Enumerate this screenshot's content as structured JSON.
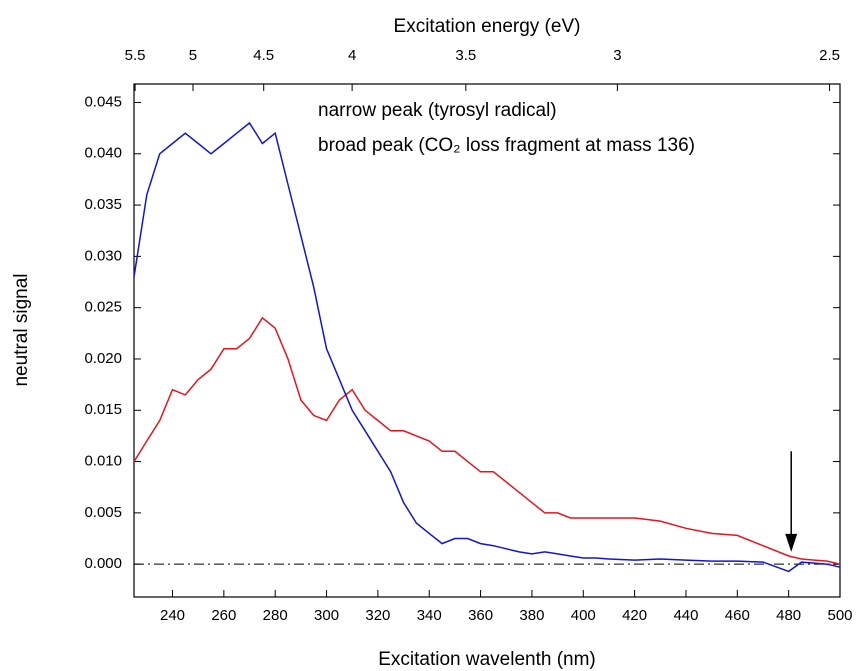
{
  "chart_data": {
    "type": "line",
    "title": "Excitation energy (eV)",
    "xlabel": "Excitation wavelenth (nm)",
    "ylabel": "neutral signal",
    "x": [
      225,
      230,
      235,
      240,
      245,
      250,
      255,
      260,
      265,
      270,
      275,
      280,
      285,
      290,
      295,
      300,
      305,
      310,
      315,
      320,
      325,
      330,
      335,
      340,
      345,
      350,
      355,
      360,
      365,
      370,
      375,
      380,
      385,
      390,
      395,
      400,
      405,
      410,
      420,
      430,
      440,
      450,
      460,
      470,
      480,
      485,
      490,
      495,
      500
    ],
    "series": [
      {
        "name": "narrow peak (tyrosyl radical)",
        "color": "#e8141c",
        "values": [
          0.01,
          0.012,
          0.014,
          0.017,
          0.0165,
          0.018,
          0.019,
          0.021,
          0.021,
          0.022,
          0.024,
          0.023,
          0.02,
          0.016,
          0.0145,
          0.014,
          0.016,
          0.017,
          0.015,
          0.014,
          0.013,
          0.013,
          0.0125,
          0.012,
          0.011,
          0.011,
          0.01,
          0.009,
          0.009,
          0.008,
          0.007,
          0.006,
          0.005,
          0.005,
          0.0045,
          0.0045,
          0.0045,
          0.0045,
          0.0045,
          0.0042,
          0.0035,
          0.003,
          0.0028,
          0.0018,
          0.0008,
          0.0005,
          0.0004,
          0.0003,
          0.0
        ]
      },
      {
        "name": "broad peak (CO₂ loss fragment at mass 136)",
        "color": "#1414d2",
        "values": [
          0.028,
          0.036,
          0.04,
          0.041,
          0.042,
          0.041,
          0.04,
          0.041,
          0.042,
          0.043,
          0.041,
          0.042,
          0.037,
          0.032,
          0.027,
          0.021,
          0.018,
          0.015,
          0.013,
          0.011,
          0.009,
          0.006,
          0.004,
          0.003,
          0.002,
          0.0025,
          0.0025,
          0.002,
          0.0018,
          0.0015,
          0.0012,
          0.001,
          0.0012,
          0.001,
          0.0008,
          0.0006,
          0.0006,
          0.0005,
          0.0004,
          0.0005,
          0.0004,
          0.0003,
          0.0003,
          0.0002,
          -0.0007,
          0.0002,
          0.0001,
          0.0,
          -0.0003
        ]
      }
    ],
    "xlim": [
      225,
      500
    ],
    "xticks": [
      240,
      260,
      280,
      300,
      320,
      340,
      360,
      380,
      400,
      420,
      440,
      460,
      480,
      500
    ],
    "x2ticks": [
      5.5,
      5,
      4.5,
      4,
      3.5,
      3,
      2.5
    ],
    "ylim": [
      -0.0032,
      0.0468
    ],
    "yticks": [
      {
        "value": 0,
        "label": "0.000"
      },
      {
        "value": 0.005,
        "label": "0.005"
      },
      {
        "value": 0.01,
        "label": "0.010"
      },
      {
        "value": 0.015,
        "label": "0.015"
      },
      {
        "value": 0.02,
        "label": "0.020"
      },
      {
        "value": 0.025,
        "label": "0.025"
      },
      {
        "value": 0.03,
        "label": "0.030"
      },
      {
        "value": 0.035,
        "label": "0.035"
      },
      {
        "value": 0.04,
        "label": "0.040"
      },
      {
        "value": 0.045,
        "label": "0.045"
      }
    ],
    "hline": 0,
    "arrow": {
      "x": 481,
      "y": [
        0.011,
        0.0012
      ]
    }
  }
}
